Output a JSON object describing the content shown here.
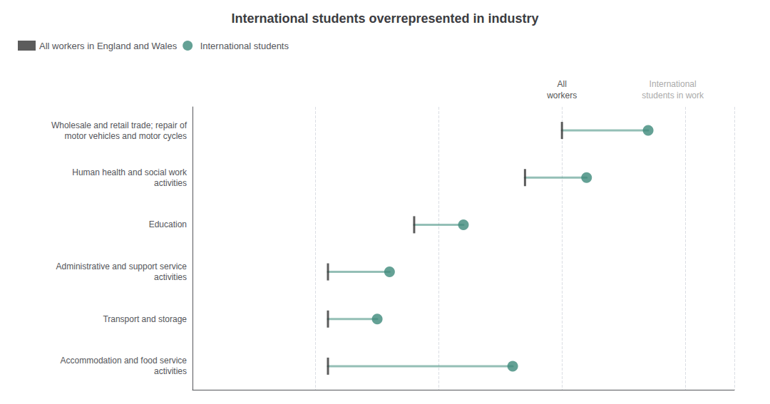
{
  "chart_data": {
    "type": "dumbbell",
    "title": "International students overrepresented in industry",
    "categories": [
      "Wholesale and retail trade; repair of\nmotor vehicles and motor cycles",
      "Human health and social work\nactivities",
      "Education",
      "Administrative and support service\nactivities",
      "Transport and storage",
      "Accommodation and food service\nactivities"
    ],
    "series": [
      {
        "name": "All workers in England and Wales",
        "color": "#333333",
        "marker": "line",
        "values": [
          15.0,
          13.5,
          9.0,
          5.5,
          5.5,
          5.5
        ]
      },
      {
        "name": "International students",
        "color": "#3d8a7a",
        "marker": "circle",
        "values": [
          18.5,
          16.0,
          11.0,
          8.0,
          7.5,
          13.0
        ]
      }
    ],
    "orientation": "horizontal",
    "xlim": [
      0,
      22
    ],
    "xticks": [
      0,
      5,
      10,
      15,
      20
    ],
    "grid": true,
    "tick_labels": "y",
    "legend": "top left",
    "annotations": [
      {
        "text": "All\nworkers",
        "x": 15.0,
        "color": "#555555"
      },
      {
        "text": "International\nstudents in work",
        "x": 19.5,
        "color": "#aaaaaa"
      }
    ]
  }
}
